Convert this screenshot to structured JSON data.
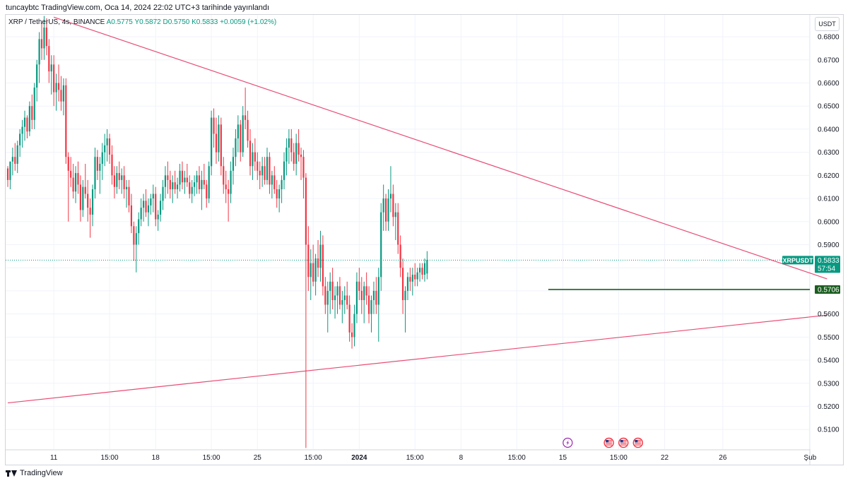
{
  "header": {
    "publisher": "tuncaybtc TradingView.com, Oca 14, 2024 22:02 UTC+3 tarihinde yayınlandı"
  },
  "legend": {
    "symbol": "XRP / TetherUS, 4s, BINANCE",
    "open": "A0.5775",
    "high": "Y0.5872",
    "low": "D0.5750",
    "close": "K0.5833",
    "change": "+0.0059 (+1.02%)"
  },
  "currency_label": "USDT",
  "price_tag": {
    "symbol": "XRPUSDT",
    "price": "0.5833",
    "countdown": "57:54"
  },
  "level_tag": "0.5706",
  "footer": {
    "brand": "TradingView"
  },
  "colors": {
    "up": "#089981",
    "down": "#f23645",
    "trendline": "#e84c75",
    "level": "#1b5e20"
  },
  "chart_data": {
    "type": "candlestick",
    "y_axis": {
      "ticks": [
        "0.6800",
        "0.6700",
        "0.6600",
        "0.6500",
        "0.6400",
        "0.6300",
        "0.6200",
        "0.6100",
        "0.6000",
        "0.5900",
        "0.5800",
        "0.5700",
        "0.5600",
        "0.5500",
        "0.5400",
        "0.5300",
        "0.5200",
        "0.5100"
      ],
      "range": [
        0.5015,
        0.6895
      ]
    },
    "x_axis": {
      "ticks": [
        {
          "label": "11",
          "bar": 19
        },
        {
          "label": "15:00",
          "bar": 42
        },
        {
          "label": "18",
          "bar": 61
        },
        {
          "label": "15:00",
          "bar": 84
        },
        {
          "label": "25",
          "bar": 103
        },
        {
          "label": "15:00",
          "bar": 126
        },
        {
          "label": "2024",
          "bar": 145
        },
        {
          "label": "15:00",
          "bar": 168
        },
        {
          "label": "8",
          "bar": 187
        },
        {
          "label": "15:00",
          "bar": 210
        },
        {
          "label": "15",
          "bar": 229
        },
        {
          "label": "15:00",
          "bar": 252
        },
        {
          "label": "22",
          "bar": 271
        },
        {
          "label": "26",
          "bar": 295
        },
        {
          "label": "Şub",
          "bar": 331
        }
      ]
    },
    "last_price": 0.5833,
    "horizontal_level": {
      "price": 0.5706,
      "from_bar": 223
    },
    "trendlines": [
      {
        "name": "upper",
        "from": {
          "bar": 19,
          "price": 0.6885
        },
        "to": {
          "bar": 338,
          "price": 0.5752
        }
      },
      {
        "name": "lower",
        "from": {
          "bar": 0,
          "price": 0.5215
        },
        "to": {
          "bar": 338,
          "price": 0.5595
        }
      }
    ],
    "event_markers": [
      {
        "kind": "bolt",
        "bar": 231
      },
      {
        "kind": "us-flag",
        "bar": 248
      },
      {
        "kind": "us-flag",
        "bar": 254
      },
      {
        "kind": "us-flag",
        "bar": 260
      }
    ],
    "candles": [
      [
        0.623,
        0.624,
        0.615,
        0.618
      ],
      [
        0.618,
        0.625,
        0.614,
        0.626
      ],
      [
        0.626,
        0.632,
        0.62,
        0.628
      ],
      [
        0.628,
        0.634,
        0.622,
        0.625
      ],
      [
        0.625,
        0.635,
        0.621,
        0.633
      ],
      [
        0.633,
        0.64,
        0.628,
        0.638
      ],
      [
        0.638,
        0.644,
        0.632,
        0.641
      ],
      [
        0.641,
        0.648,
        0.635,
        0.645
      ],
      [
        0.645,
        0.646,
        0.636,
        0.639
      ],
      [
        0.639,
        0.652,
        0.637,
        0.65
      ],
      [
        0.65,
        0.655,
        0.64,
        0.644
      ],
      [
        0.644,
        0.66,
        0.64,
        0.658
      ],
      [
        0.658,
        0.67,
        0.652,
        0.668
      ],
      [
        0.668,
        0.682,
        0.66,
        0.679
      ],
      [
        0.679,
        0.686,
        0.67,
        0.675
      ],
      [
        0.675,
        0.689,
        0.67,
        0.684
      ],
      [
        0.684,
        0.688,
        0.672,
        0.676
      ],
      [
        0.676,
        0.679,
        0.66,
        0.665
      ],
      [
        0.665,
        0.672,
        0.655,
        0.668
      ],
      [
        0.668,
        0.672,
        0.65,
        0.656
      ],
      [
        0.656,
        0.664,
        0.648,
        0.66
      ],
      [
        0.66,
        0.668,
        0.652,
        0.657
      ],
      [
        0.657,
        0.663,
        0.648,
        0.652
      ],
      [
        0.652,
        0.662,
        0.646,
        0.659
      ],
      [
        0.659,
        0.662,
        0.625,
        0.628
      ],
      [
        0.628,
        0.63,
        0.6,
        0.622
      ],
      [
        0.622,
        0.628,
        0.615,
        0.619
      ],
      [
        0.619,
        0.625,
        0.61,
        0.613
      ],
      [
        0.613,
        0.624,
        0.608,
        0.621
      ],
      [
        0.621,
        0.626,
        0.612,
        0.616
      ],
      [
        0.616,
        0.62,
        0.6,
        0.605
      ],
      [
        0.605,
        0.618,
        0.602,
        0.615
      ],
      [
        0.615,
        0.625,
        0.61,
        0.612
      ],
      [
        0.612,
        0.618,
        0.6,
        0.606
      ],
      [
        0.606,
        0.61,
        0.593,
        0.603
      ],
      [
        0.603,
        0.616,
        0.598,
        0.614
      ],
      [
        0.614,
        0.632,
        0.61,
        0.628
      ],
      [
        0.628,
        0.631,
        0.618,
        0.622
      ],
      [
        0.622,
        0.628,
        0.612,
        0.625
      ],
      [
        0.625,
        0.634,
        0.618,
        0.63
      ],
      [
        0.63,
        0.638,
        0.624,
        0.633
      ],
      [
        0.633,
        0.64,
        0.626,
        0.636
      ],
      [
        0.636,
        0.638,
        0.625,
        0.629
      ],
      [
        0.629,
        0.633,
        0.616,
        0.62
      ],
      [
        0.62,
        0.624,
        0.61,
        0.615
      ],
      [
        0.615,
        0.624,
        0.612,
        0.621
      ],
      [
        0.621,
        0.626,
        0.614,
        0.618
      ],
      [
        0.618,
        0.623,
        0.612,
        0.62
      ],
      [
        0.62,
        0.624,
        0.61,
        0.614
      ],
      [
        0.614,
        0.618,
        0.606,
        0.615
      ],
      [
        0.615,
        0.618,
        0.604,
        0.607
      ],
      [
        0.607,
        0.612,
        0.595,
        0.598
      ],
      [
        0.598,
        0.6,
        0.583,
        0.59
      ],
      [
        0.59,
        0.598,
        0.578,
        0.595
      ],
      [
        0.595,
        0.604,
        0.59,
        0.601
      ],
      [
        0.601,
        0.61,
        0.598,
        0.606
      ],
      [
        0.606,
        0.612,
        0.6,
        0.609
      ],
      [
        0.609,
        0.614,
        0.602,
        0.604
      ],
      [
        0.604,
        0.61,
        0.598,
        0.607
      ],
      [
        0.607,
        0.612,
        0.603,
        0.61
      ],
      [
        0.61,
        0.616,
        0.604,
        0.612
      ],
      [
        0.612,
        0.615,
        0.598,
        0.601
      ],
      [
        0.601,
        0.605,
        0.596,
        0.603
      ],
      [
        0.603,
        0.612,
        0.6,
        0.609
      ],
      [
        0.609,
        0.618,
        0.605,
        0.615
      ],
      [
        0.615,
        0.624,
        0.61,
        0.62
      ],
      [
        0.62,
        0.626,
        0.612,
        0.618
      ],
      [
        0.618,
        0.622,
        0.61,
        0.614
      ],
      [
        0.614,
        0.62,
        0.608,
        0.617
      ],
      [
        0.617,
        0.622,
        0.612,
        0.614
      ],
      [
        0.614,
        0.619,
        0.61,
        0.616
      ],
      [
        0.616,
        0.625,
        0.613,
        0.622
      ],
      [
        0.622,
        0.626,
        0.614,
        0.617
      ],
      [
        0.617,
        0.622,
        0.612,
        0.619
      ],
      [
        0.619,
        0.625,
        0.615,
        0.617
      ],
      [
        0.617,
        0.62,
        0.61,
        0.612
      ],
      [
        0.612,
        0.618,
        0.608,
        0.615
      ],
      [
        0.615,
        0.62,
        0.611,
        0.617
      ],
      [
        0.617,
        0.622,
        0.612,
        0.62
      ],
      [
        0.62,
        0.624,
        0.612,
        0.614
      ],
      [
        0.614,
        0.622,
        0.605,
        0.618
      ],
      [
        0.618,
        0.625,
        0.614,
        0.616
      ],
      [
        0.616,
        0.618,
        0.606,
        0.61
      ],
      [
        0.61,
        0.626,
        0.608,
        0.624
      ],
      [
        0.624,
        0.648,
        0.62,
        0.645
      ],
      [
        0.645,
        0.649,
        0.632,
        0.638
      ],
      [
        0.638,
        0.645,
        0.625,
        0.63
      ],
      [
        0.63,
        0.646,
        0.626,
        0.642
      ],
      [
        0.642,
        0.645,
        0.62,
        0.624
      ],
      [
        0.624,
        0.628,
        0.612,
        0.616
      ],
      [
        0.616,
        0.622,
        0.608,
        0.614
      ],
      [
        0.614,
        0.618,
        0.6,
        0.612
      ],
      [
        0.612,
        0.626,
        0.608,
        0.622
      ],
      [
        0.622,
        0.632,
        0.616,
        0.628
      ],
      [
        0.628,
        0.64,
        0.624,
        0.636
      ],
      [
        0.636,
        0.646,
        0.63,
        0.642
      ],
      [
        0.642,
        0.644,
        0.626,
        0.63
      ],
      [
        0.63,
        0.65,
        0.628,
        0.646
      ],
      [
        0.646,
        0.658,
        0.64,
        0.644
      ],
      [
        0.644,
        0.648,
        0.632,
        0.635
      ],
      [
        0.635,
        0.64,
        0.62,
        0.624
      ],
      [
        0.624,
        0.634,
        0.618,
        0.63
      ],
      [
        0.63,
        0.636,
        0.622,
        0.626
      ],
      [
        0.626,
        0.63,
        0.618,
        0.622
      ],
      [
        0.622,
        0.626,
        0.614,
        0.62
      ],
      [
        0.62,
        0.628,
        0.615,
        0.624
      ],
      [
        0.624,
        0.628,
        0.616,
        0.618
      ],
      [
        0.618,
        0.632,
        0.616,
        0.628
      ],
      [
        0.628,
        0.63,
        0.612,
        0.616
      ],
      [
        0.616,
        0.622,
        0.61,
        0.62
      ],
      [
        0.62,
        0.624,
        0.612,
        0.614
      ],
      [
        0.614,
        0.618,
        0.606,
        0.61
      ],
      [
        0.61,
        0.616,
        0.604,
        0.614
      ],
      [
        0.614,
        0.62,
        0.608,
        0.618
      ],
      [
        0.618,
        0.63,
        0.614,
        0.626
      ],
      [
        0.626,
        0.636,
        0.62,
        0.632
      ],
      [
        0.632,
        0.64,
        0.625,
        0.636
      ],
      [
        0.636,
        0.64,
        0.626,
        0.63
      ],
      [
        0.63,
        0.634,
        0.622,
        0.625
      ],
      [
        0.625,
        0.638,
        0.62,
        0.634
      ],
      [
        0.634,
        0.64,
        0.626,
        0.629
      ],
      [
        0.629,
        0.632,
        0.618,
        0.628
      ],
      [
        0.628,
        0.631,
        0.61,
        0.619
      ],
      [
        0.619,
        0.621,
        0.502,
        0.59
      ],
      [
        0.59,
        0.598,
        0.57,
        0.576
      ],
      [
        0.576,
        0.588,
        0.566,
        0.582
      ],
      [
        0.582,
        0.59,
        0.572,
        0.574
      ],
      [
        0.574,
        0.586,
        0.568,
        0.584
      ],
      [
        0.584,
        0.592,
        0.576,
        0.58
      ],
      [
        0.58,
        0.596,
        0.574,
        0.59
      ],
      [
        0.59,
        0.594,
        0.568,
        0.572
      ],
      [
        0.572,
        0.576,
        0.56,
        0.564
      ],
      [
        0.564,
        0.574,
        0.552,
        0.57
      ],
      [
        0.57,
        0.578,
        0.56,
        0.574
      ],
      [
        0.574,
        0.58,
        0.562,
        0.566
      ],
      [
        0.566,
        0.572,
        0.558,
        0.568
      ],
      [
        0.568,
        0.574,
        0.56,
        0.572
      ],
      [
        0.572,
        0.576,
        0.562,
        0.564
      ],
      [
        0.564,
        0.57,
        0.556,
        0.566
      ],
      [
        0.566,
        0.572,
        0.56,
        0.568
      ],
      [
        0.568,
        0.574,
        0.562,
        0.564
      ],
      [
        0.564,
        0.568,
        0.548,
        0.552
      ],
      [
        0.552,
        0.556,
        0.545,
        0.55
      ],
      [
        0.55,
        0.564,
        0.546,
        0.56
      ],
      [
        0.56,
        0.578,
        0.556,
        0.574
      ],
      [
        0.574,
        0.58,
        0.566,
        0.57
      ],
      [
        0.57,
        0.576,
        0.56,
        0.566
      ],
      [
        0.566,
        0.574,
        0.556,
        0.572
      ],
      [
        0.572,
        0.578,
        0.564,
        0.568
      ],
      [
        0.568,
        0.572,
        0.556,
        0.56
      ],
      [
        0.56,
        0.568,
        0.552,
        0.566
      ],
      [
        0.566,
        0.574,
        0.56,
        0.57
      ],
      [
        0.57,
        0.576,
        0.56,
        0.564
      ],
      [
        0.564,
        0.58,
        0.548,
        0.576
      ],
      [
        0.576,
        0.608,
        0.57,
        0.604
      ],
      [
        0.604,
        0.616,
        0.596,
        0.61
      ],
      [
        0.61,
        0.612,
        0.596,
        0.6
      ],
      [
        0.6,
        0.614,
        0.596,
        0.61
      ],
      [
        0.61,
        0.624,
        0.604,
        0.612
      ],
      [
        0.612,
        0.616,
        0.598,
        0.602
      ],
      [
        0.602,
        0.608,
        0.592,
        0.604
      ],
      [
        0.604,
        0.608,
        0.586,
        0.59
      ],
      [
        0.59,
        0.594,
        0.576,
        0.58
      ],
      [
        0.58,
        0.584,
        0.56,
        0.566
      ],
      [
        0.566,
        0.572,
        0.552,
        0.57
      ],
      [
        0.57,
        0.578,
        0.566,
        0.576
      ],
      [
        0.576,
        0.58,
        0.57,
        0.574
      ],
      [
        0.574,
        0.58,
        0.568,
        0.577
      ],
      [
        0.577,
        0.582,
        0.572,
        0.575
      ],
      [
        0.575,
        0.58,
        0.572,
        0.578
      ],
      [
        0.578,
        0.582,
        0.574,
        0.58
      ],
      [
        0.58,
        0.582,
        0.575,
        0.577
      ],
      [
        0.577,
        0.584,
        0.574,
        0.582
      ],
      [
        0.5775,
        0.5872,
        0.575,
        0.5833
      ]
    ]
  }
}
